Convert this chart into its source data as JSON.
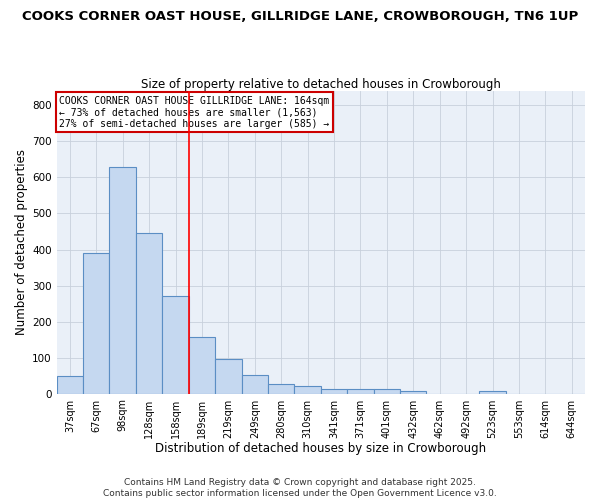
{
  "title": "COOKS CORNER OAST HOUSE, GILLRIDGE LANE, CROWBOROUGH, TN6 1UP",
  "subtitle": "Size of property relative to detached houses in Crowborough",
  "xlabel": "Distribution of detached houses by size in Crowborough",
  "ylabel": "Number of detached properties",
  "bar_values": [
    48,
    390,
    630,
    445,
    270,
    158,
    97,
    53,
    28,
    20,
    13,
    12,
    12,
    7,
    0,
    0,
    6,
    0,
    0,
    0
  ],
  "bar_labels": [
    "37sqm",
    "67sqm",
    "98sqm",
    "128sqm",
    "158sqm",
    "189sqm",
    "219sqm",
    "249sqm",
    "280sqm",
    "310sqm",
    "341sqm",
    "371sqm",
    "401sqm",
    "432sqm",
    "462sqm",
    "492sqm",
    "523sqm",
    "553sqm",
    "614sqm",
    "644sqm"
  ],
  "bar_color": "#c5d8f0",
  "bar_edge_color": "#5b8ec4",
  "red_line_x": 4.5,
  "annotation_text": "COOKS CORNER OAST HOUSE GILLRIDGE LANE: 164sqm\n← 73% of detached houses are smaller (1,563)\n27% of semi-detached houses are larger (585) →",
  "annotation_box_color": "#ffffff",
  "annotation_box_edge": "#cc0000",
  "footer_text": "Contains HM Land Registry data © Crown copyright and database right 2025.\nContains public sector information licensed under the Open Government Licence v3.0.",
  "ylim": [
    0,
    840
  ],
  "yticks": [
    0,
    100,
    200,
    300,
    400,
    500,
    600,
    700,
    800
  ],
  "background_color": "#eaf0f8",
  "grid_color": "#c8d0dc",
  "title_fontsize": 9.5,
  "subtitle_fontsize": 8.5,
  "axis_label_fontsize": 8.5,
  "tick_fontsize": 7,
  "footer_fontsize": 6.5,
  "annotation_fontsize": 7
}
